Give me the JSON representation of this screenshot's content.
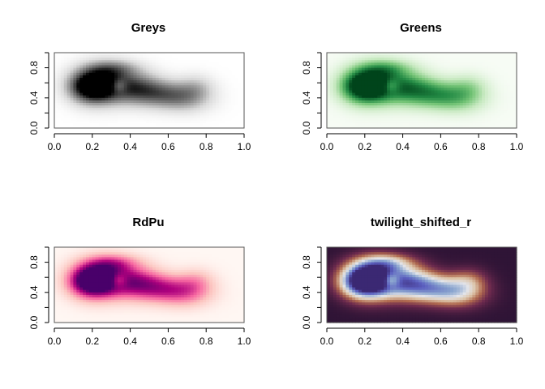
{
  "chart_data": [
    {
      "type": "heatmap",
      "title": "Greys",
      "colormap": [
        "#ffffff",
        "#d9d9d9",
        "#969696",
        "#525252",
        "#000000"
      ],
      "xlim": [
        0,
        1
      ],
      "ylim": [
        0,
        1
      ],
      "xticks": [
        "0.0",
        "0.2",
        "0.4",
        "0.6",
        "0.8",
        "1.0"
      ],
      "yticks": [
        "0.0",
        "0.4",
        "0.8"
      ]
    },
    {
      "type": "heatmap",
      "title": "Greens",
      "colormap": [
        "#f7fcf5",
        "#c7e9c0",
        "#74c476",
        "#238b45",
        "#00441b"
      ],
      "xlim": [
        0,
        1
      ],
      "ylim": [
        0,
        1
      ],
      "xticks": [
        "0.0",
        "0.2",
        "0.4",
        "0.6",
        "0.8",
        "1.0"
      ],
      "yticks": [
        "0.0",
        "0.4",
        "0.8"
      ]
    },
    {
      "type": "heatmap",
      "title": "RdPu",
      "colormap": [
        "#fff7f3",
        "#fcc5c0",
        "#f768a1",
        "#ae017e",
        "#49006a"
      ],
      "xlim": [
        0,
        1
      ],
      "ylim": [
        0,
        1
      ],
      "xticks": [
        "0.0",
        "0.2",
        "0.4",
        "0.6",
        "0.8",
        "1.0"
      ],
      "yticks": [
        "0.0",
        "0.4",
        "0.8"
      ]
    },
    {
      "type": "heatmap",
      "title": "twilight_shifted_r",
      "colormap": [
        "#2f1436",
        "#6d2a4e",
        "#b0694f",
        "#dcc3a7",
        "#e2e4ea",
        "#8aa5cf",
        "#5b5fc0",
        "#3b2873"
      ],
      "xlim": [
        0,
        1
      ],
      "ylim": [
        0,
        1
      ],
      "xticks": [
        "0.0",
        "0.2",
        "0.4",
        "0.6",
        "0.8",
        "1.0"
      ],
      "yticks": [
        "0.0",
        "0.4",
        "0.8"
      ]
    }
  ]
}
